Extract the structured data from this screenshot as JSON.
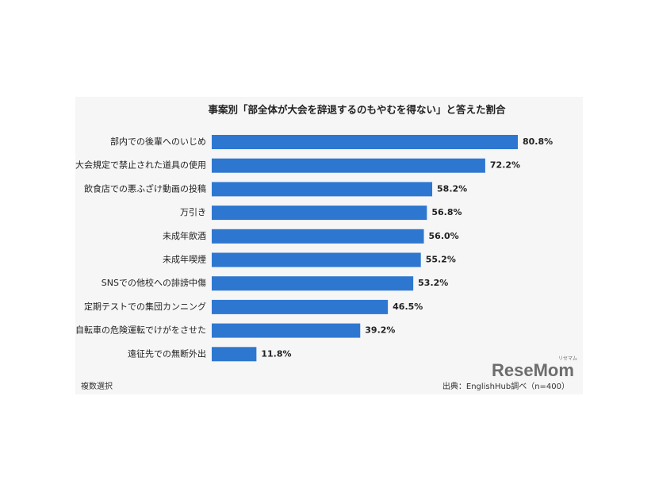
{
  "chart_data": {
    "type": "bar",
    "orientation": "horizontal",
    "title": "事案別「部全体が大会を辞退するのもやむを得ない」と答えた割合",
    "categories": [
      "部内での後輩へのいじめ",
      "大会規定で禁止された道具の使用",
      "飲食店での悪ふざけ動画の投稿",
      "万引き",
      "未成年飲酒",
      "未成年喫煙",
      "SNSでの他校への誹謗中傷",
      "定期テストでの集団カンニング",
      "自転車の危険運転でけがをさせた",
      "遠征先での無断外出"
    ],
    "values": [
      80.8,
      72.2,
      58.2,
      56.8,
      56.0,
      55.2,
      53.2,
      46.5,
      39.2,
      11.8
    ],
    "value_labels": [
      "80.8%",
      "72.2%",
      "58.2%",
      "56.8%",
      "56.0%",
      "55.2%",
      "53.2%",
      "46.5%",
      "39.2%",
      "11.8%"
    ],
    "color": "#2e77d0",
    "note": "複数選択",
    "source": "出典：EnglishHub調べ（n=400）"
  },
  "logo": {
    "text": "ReseMom",
    "sub": "リセマム"
  }
}
